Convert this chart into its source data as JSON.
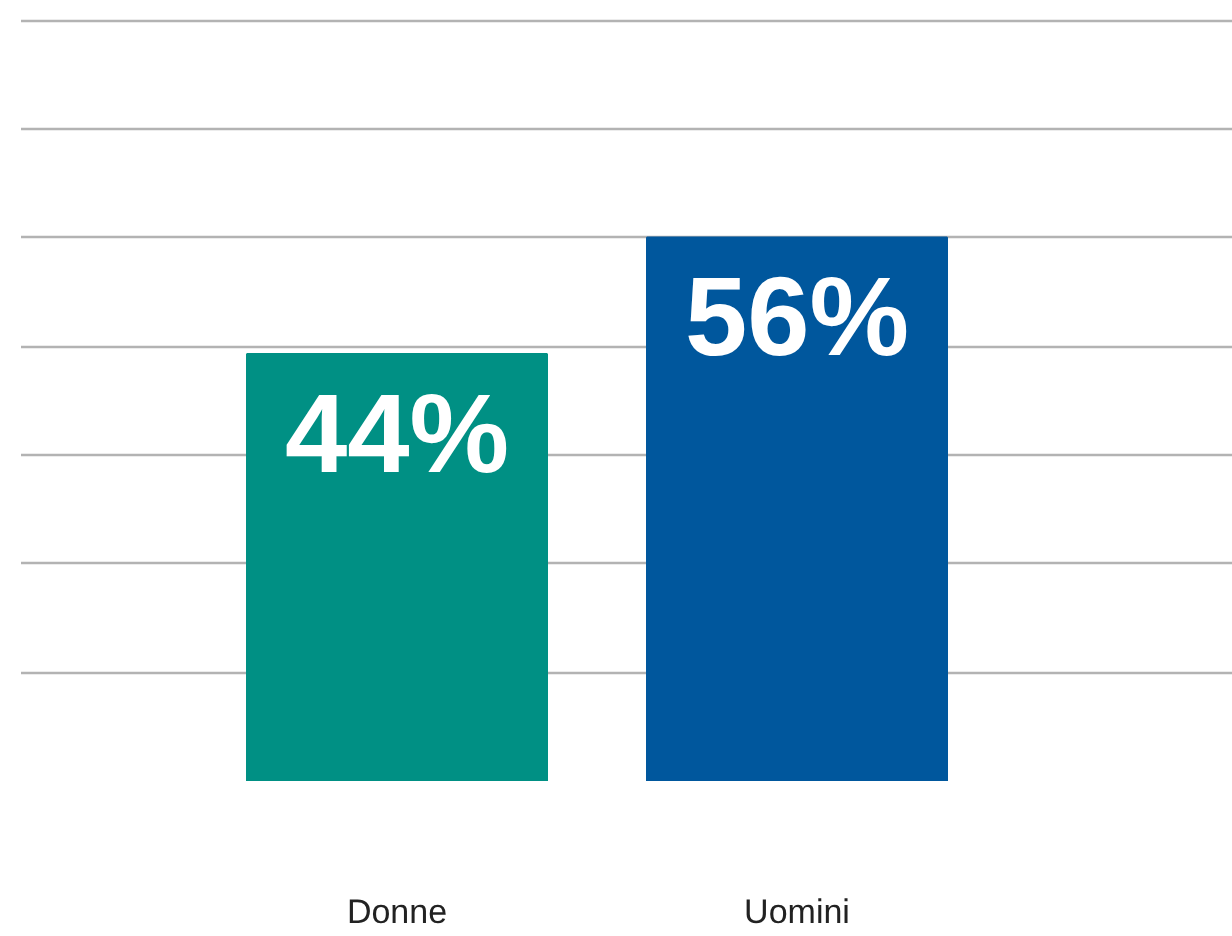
{
  "chart_data": {
    "type": "bar",
    "categories": [
      "Donne",
      "Uomini"
    ],
    "values": [
      44,
      56
    ],
    "colors": [
      "#009084",
      "#00579d"
    ],
    "value_labels": [
      "44%",
      "56%"
    ],
    "grid": "y",
    "tick_labels": "x"
  }
}
